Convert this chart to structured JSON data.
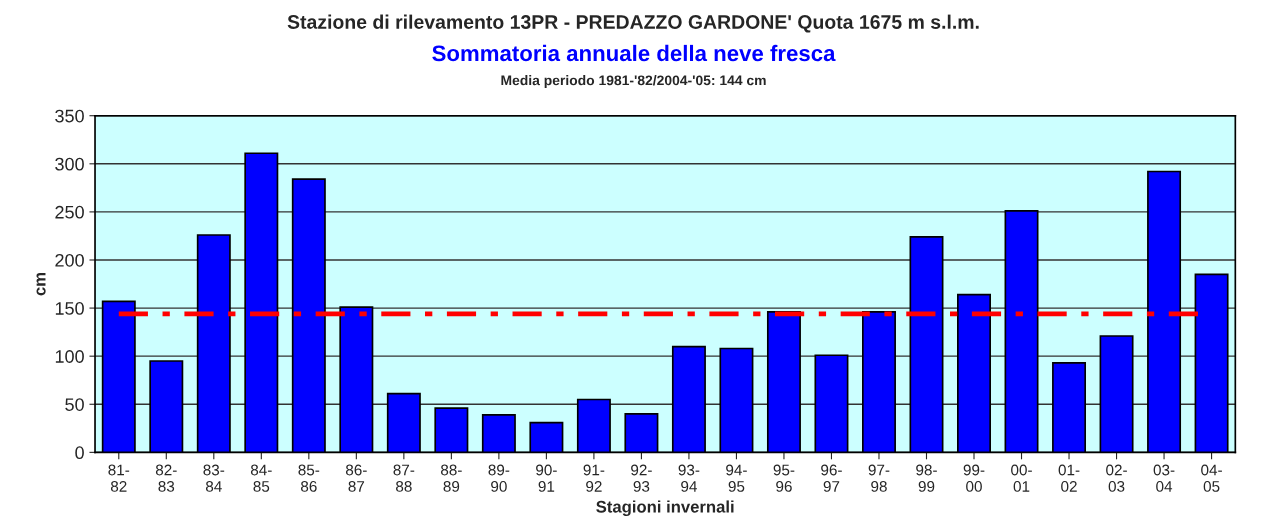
{
  "chart_data": {
    "type": "bar",
    "title": "Stazione di rilevamento 13PR - PREDAZZO GARDONE' Quota 1675 m s.l.m.",
    "subtitle": "Sommatoria annuale della neve fresca",
    "annotations": [
      "Media periodo 1981-'82/2004-'05: 144 cm"
    ],
    "xlabel": "Stagioni invernali",
    "ylabel": "cm",
    "categories": [
      "81-\n82",
      "82-\n83",
      "83-\n84",
      "84-\n85",
      "85-\n86",
      "86-\n87",
      "87-\n88",
      "88-\n89",
      "89-\n90",
      "90-\n91",
      "91-\n92",
      "92-\n93",
      "93-\n94",
      "94-\n95",
      "95-\n96",
      "96-\n97",
      "97-\n98",
      "98-\n99",
      "99-\n00",
      "00-\n01",
      "01-\n02",
      "02-\n03",
      "03-\n04",
      "04-\n05"
    ],
    "values": [
      157,
      95,
      226,
      311,
      284,
      151,
      61,
      46,
      39,
      31,
      55,
      40,
      110,
      108,
      146,
      101,
      146,
      224,
      164,
      251,
      93,
      121,
      292,
      185
    ],
    "color": "#0000ff",
    "ylim": [
      0,
      350
    ],
    "yticks": [
      0,
      50,
      100,
      150,
      200,
      250,
      300,
      350
    ],
    "grid": "y",
    "ref_lines": [
      {
        "axis": "y",
        "value": 144,
        "color": "#ff0000",
        "line_style": "dashdot"
      }
    ]
  }
}
